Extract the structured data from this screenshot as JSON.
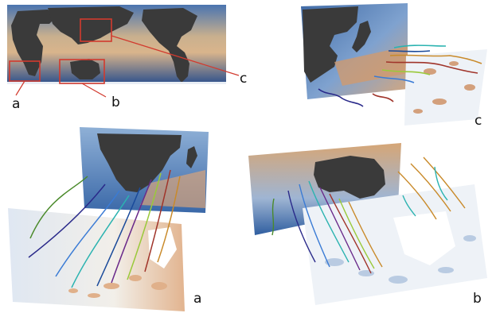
{
  "labels": {
    "overview_a": "a",
    "overview_b": "b",
    "overview_c": "c",
    "panel_c": "c",
    "panel_a": "a",
    "panel_b": "b"
  },
  "colors": {
    "ocean_deep": "#2b4f8c",
    "ocean_mid": "#6f93c4",
    "warm_water": "#d9b48c",
    "land": "#3a3a3a",
    "highlight_box": "#d23a2e",
    "foam": "#eef2f7",
    "trajectories": [
      "#2a2a8a",
      "#3a7bd5",
      "#2bb3b0",
      "#9ac93a",
      "#c98a2a",
      "#a0342a",
      "#6a2a8a",
      "#1a4a9a"
    ]
  }
}
